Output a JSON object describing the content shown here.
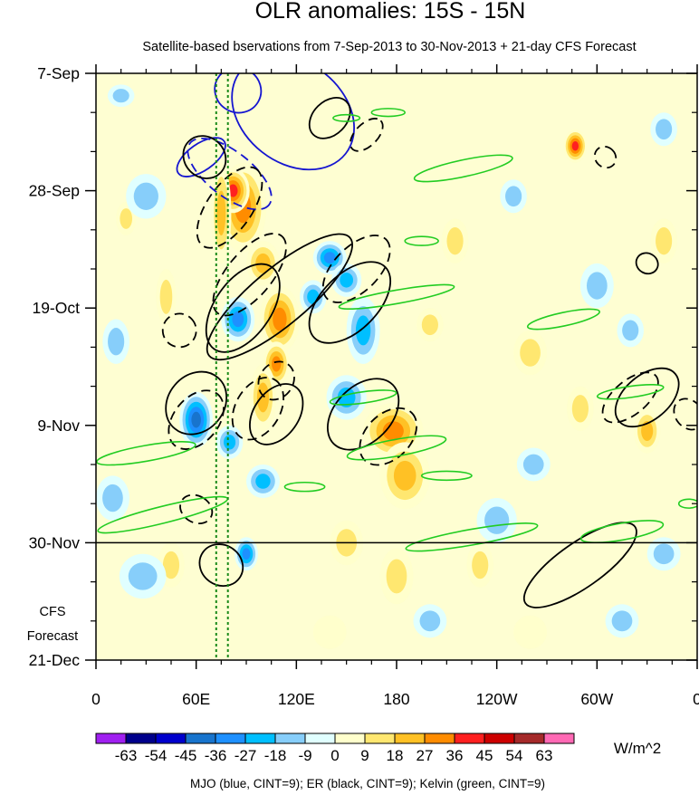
{
  "chart_data": {
    "type": "heatmap",
    "title": "OLR anomalies: 15S - 15N",
    "subtitle": "Satellite-based bservations from 7-Sep-2013 to 30-Nov-2013 + 21-day CFS Forecast",
    "x_ticks": [
      {
        "lon": 0,
        "label": "0"
      },
      {
        "lon": 60,
        "label": "60E"
      },
      {
        "lon": 120,
        "label": "120E"
      },
      {
        "lon": 180,
        "label": "180"
      },
      {
        "lon": 240,
        "label": "120W"
      },
      {
        "lon": 300,
        "label": "60W"
      },
      {
        "lon": 360,
        "label": "0"
      }
    ],
    "xlim": [
      0,
      360
    ],
    "y_ticks": [
      {
        "day": 0,
        "label": "7-Sep"
      },
      {
        "day": 21,
        "label": "28-Sep"
      },
      {
        "day": 42,
        "label": "19-Oct"
      },
      {
        "day": 63,
        "label": "9-Nov"
      },
      {
        "day": 84,
        "label": "30-Nov"
      },
      {
        "day": 105,
        "label": "21-Dec"
      }
    ],
    "ylim_days": [
      0,
      105
    ],
    "forecast_start_day": 84,
    "forecast_label_1": "CFS",
    "forecast_label_2": "Forecast",
    "reference_lon_lines": [
      72,
      79
    ],
    "colorbar": {
      "labels": [
        "-63",
        "-54",
        "-45",
        "-36",
        "-27",
        "-18",
        "-9",
        "0",
        "9",
        "18",
        "27",
        "36",
        "45",
        "54",
        "63"
      ],
      "colors": [
        "#a020f0",
        "#00008b",
        "#0000cd",
        "#1874cd",
        "#1e90ff",
        "#00bfff",
        "#87cefa",
        "#e0ffff",
        "#ffffcc",
        "#ffe770",
        "#ffc125",
        "#ff8c00",
        "#ff2020",
        "#cd0000",
        "#a52a2a",
        "#ff69b4"
      ],
      "units": "W/m^2"
    },
    "contour_legend": "MJO (blue, CINT=9); ER (black, CINT=9); Kelvin (green, CINT=9)",
    "blobs": [
      {
        "lon": 88,
        "day": 24,
        "rx": 14,
        "ry": 8,
        "v": 36
      },
      {
        "lon": 82,
        "day": 21,
        "rx": 10,
        "ry": 4,
        "v": 45
      },
      {
        "lon": 100,
        "day": 34,
        "rx": 10,
        "ry": 4,
        "v": 27
      },
      {
        "lon": 110,
        "day": 44,
        "rx": 12,
        "ry": 6,
        "v": 36
      },
      {
        "lon": 108,
        "day": 52,
        "rx": 8,
        "ry": 4,
        "v": 36
      },
      {
        "lon": 100,
        "day": 58,
        "rx": 8,
        "ry": 6,
        "v": 27
      },
      {
        "lon": 178,
        "day": 64,
        "rx": 18,
        "ry": 5,
        "v": 36
      },
      {
        "lon": 185,
        "day": 72,
        "rx": 15,
        "ry": 6,
        "v": 27
      },
      {
        "lon": 150,
        "day": 84,
        "rx": 10,
        "ry": 4,
        "v": 18
      },
      {
        "lon": 180,
        "day": 90,
        "rx": 10,
        "ry": 5,
        "v": 18
      },
      {
        "lon": 287,
        "day": 13,
        "rx": 7,
        "ry": 3,
        "v": 45
      },
      {
        "lon": 330,
        "day": 64,
        "rx": 8,
        "ry": 4,
        "v": 27
      },
      {
        "lon": 42,
        "day": 40,
        "rx": 6,
        "ry": 5,
        "v": 18
      },
      {
        "lon": 18,
        "day": 26,
        "rx": 6,
        "ry": 3,
        "v": 18
      },
      {
        "lon": 260,
        "day": 50,
        "rx": 10,
        "ry": 4,
        "v": 18
      },
      {
        "lon": 230,
        "day": 88,
        "rx": 8,
        "ry": 4,
        "v": 18
      },
      {
        "lon": 200,
        "day": 45,
        "rx": 8,
        "ry": 3,
        "v": 18
      },
      {
        "lon": 45,
        "day": 88,
        "rx": 8,
        "ry": 4,
        "v": 18
      },
      {
        "lon": 75,
        "day": 25,
        "rx": 6,
        "ry": 9,
        "v": 27
      },
      {
        "lon": 140,
        "day": 33,
        "rx": 10,
        "ry": 3,
        "v": -36
      },
      {
        "lon": 150,
        "day": 37,
        "rx": 9,
        "ry": 3,
        "v": -27
      },
      {
        "lon": 130,
        "day": 40,
        "rx": 8,
        "ry": 3,
        "v": -27
      },
      {
        "lon": 85,
        "day": 44,
        "rx": 10,
        "ry": 4,
        "v": -36
      },
      {
        "lon": 60,
        "day": 62,
        "rx": 10,
        "ry": 5,
        "v": -45
      },
      {
        "lon": 80,
        "day": 66,
        "rx": 8,
        "ry": 3,
        "v": -27
      },
      {
        "lon": 160,
        "day": 46,
        "rx": 10,
        "ry": 6,
        "v": -27
      },
      {
        "lon": 150,
        "day": 58,
        "rx": 12,
        "ry": 4,
        "v": -27
      },
      {
        "lon": 90,
        "day": 86,
        "rx": 7,
        "ry": 3,
        "v": -36
      },
      {
        "lon": 30,
        "day": 22,
        "rx": 12,
        "ry": 4,
        "v": -18
      },
      {
        "lon": 28,
        "day": 90,
        "rx": 14,
        "ry": 4,
        "v": -18
      },
      {
        "lon": 100,
        "day": 73,
        "rx": 10,
        "ry": 3,
        "v": -27
      },
      {
        "lon": 240,
        "day": 80,
        "rx": 12,
        "ry": 4,
        "v": -18
      },
      {
        "lon": 262,
        "day": 70,
        "rx": 10,
        "ry": 3,
        "v": -18
      },
      {
        "lon": 300,
        "day": 38,
        "rx": 10,
        "ry": 4,
        "v": -18
      },
      {
        "lon": 320,
        "day": 46,
        "rx": 8,
        "ry": 3,
        "v": -18
      },
      {
        "lon": 315,
        "day": 98,
        "rx": 10,
        "ry": 3,
        "v": -18
      },
      {
        "lon": 200,
        "day": 98,
        "rx": 10,
        "ry": 3,
        "v": -18
      },
      {
        "lon": 340,
        "day": 86,
        "rx": 10,
        "ry": 3,
        "v": -18
      },
      {
        "lon": 12,
        "day": 48,
        "rx": 8,
        "ry": 4,
        "v": -18
      },
      {
        "lon": 15,
        "day": 4,
        "rx": 8,
        "ry": 2,
        "v": -18
      },
      {
        "lon": 250,
        "day": 22,
        "rx": 8,
        "ry": 3,
        "v": -18
      },
      {
        "lon": 340,
        "day": 10,
        "rx": 8,
        "ry": 3,
        "v": -18
      },
      {
        "lon": 10,
        "day": 76,
        "rx": 10,
        "ry": 4,
        "v": -18
      },
      {
        "lon": 290,
        "day": 60,
        "rx": 8,
        "ry": 4,
        "v": 18
      },
      {
        "lon": 215,
        "day": 30,
        "rx": 8,
        "ry": 4,
        "v": 18
      },
      {
        "lon": 340,
        "day": 30,
        "rx": 8,
        "ry": 4,
        "v": 18
      },
      {
        "lon": 260,
        "day": 100,
        "rx": 10,
        "ry": 3,
        "v": 9
      },
      {
        "lon": 140,
        "day": 100,
        "rx": 10,
        "ry": 3,
        "v": 9
      }
    ],
    "mjo_contours": [
      {
        "lon": 85,
        "day": 3,
        "rlon": 14,
        "rday": 4,
        "angle": 30,
        "dash": false
      },
      {
        "lon": 118,
        "day": 7,
        "rlon": 40,
        "rday": 9,
        "angle": 38,
        "dash": false
      },
      {
        "lon": 63,
        "day": 15,
        "rlon": 8,
        "rday": 5,
        "angle": 55,
        "dash": false
      },
      {
        "lon": 80,
        "day": 18,
        "rlon": 30,
        "rday": 4,
        "angle": 38,
        "dash": true
      }
    ],
    "er_contours": [
      {
        "lon": 140,
        "day": 8,
        "rlon": 14,
        "rday": 3,
        "angle": -45,
        "dash": false
      },
      {
        "lon": 162,
        "day": 11,
        "rlon": 12,
        "rday": 2,
        "angle": -45,
        "dash": true
      },
      {
        "lon": 65,
        "day": 15,
        "rlon": 12,
        "rday": 4,
        "angle": -45,
        "dash": false
      },
      {
        "lon": 80,
        "day": 24,
        "rlon": 28,
        "rday": 4,
        "angle": -55,
        "dash": true
      },
      {
        "lon": 110,
        "day": 40,
        "rlon": 55,
        "rday": 5,
        "angle": -40,
        "dash": false
      },
      {
        "lon": 88,
        "day": 42,
        "rlon": 30,
        "rday": 5,
        "angle": -55,
        "dash": false
      },
      {
        "lon": 92,
        "day": 36,
        "rlon": 30,
        "rday": 4,
        "angle": -50,
        "dash": true
      },
      {
        "lon": 152,
        "day": 41,
        "rlon": 30,
        "rday": 5,
        "angle": -45,
        "dash": false
      },
      {
        "lon": 156,
        "day": 35,
        "rlon": 25,
        "rday": 4,
        "angle": -45,
        "dash": true
      },
      {
        "lon": 60,
        "day": 59,
        "rlon": 20,
        "rday": 5,
        "angle": -50,
        "dash": false
      },
      {
        "lon": 60,
        "day": 62,
        "rlon": 20,
        "rday": 4,
        "angle": -50,
        "dash": true
      },
      {
        "lon": 97,
        "day": 60,
        "rlon": 20,
        "rday": 4,
        "angle": -60,
        "dash": true
      },
      {
        "lon": 108,
        "day": 61,
        "rlon": 20,
        "rday": 4,
        "angle": -55,
        "dash": false
      },
      {
        "lon": 160,
        "day": 61,
        "rlon": 25,
        "rday": 5,
        "angle": -45,
        "dash": false
      },
      {
        "lon": 175,
        "day": 65,
        "rlon": 20,
        "rday": 4,
        "angle": -45,
        "dash": true
      },
      {
        "lon": 60,
        "day": 78,
        "rlon": 8,
        "rday": 3,
        "angle": -60,
        "dash": true
      },
      {
        "lon": 75,
        "day": 88,
        "rlon": 12,
        "rday": 4,
        "angle": -55,
        "dash": false
      },
      {
        "lon": 320,
        "day": 58,
        "rlon": 20,
        "rday": 3,
        "angle": -40,
        "dash": true
      },
      {
        "lon": 330,
        "day": 58,
        "rlon": 22,
        "rday": 4,
        "angle": -40,
        "dash": false
      },
      {
        "lon": 355,
        "day": 61,
        "rlon": 8,
        "rday": 3,
        "angle": -40,
        "dash": true
      },
      {
        "lon": 290,
        "day": 88,
        "rlon": 40,
        "rday": 4,
        "angle": -35,
        "dash": false
      },
      {
        "lon": 330,
        "day": 34,
        "rlon": 6,
        "rday": 2,
        "angle": -60,
        "dash": false
      },
      {
        "lon": 305,
        "day": 15,
        "rlon": 6,
        "rday": 2,
        "angle": -45,
        "dash": true
      },
      {
        "lon": 50,
        "day": 46,
        "rlon": 10,
        "rday": 3,
        "angle": -45,
        "dash": true
      },
      {
        "lon": 108,
        "day": 55,
        "rlon": 12,
        "rday": 3,
        "angle": -55,
        "dash": true
      }
    ],
    "kelvin_contours": [
      {
        "lon": 220,
        "day": 17,
        "rlon": 30,
        "rday": 1.5,
        "angle": -12
      },
      {
        "lon": 150,
        "day": 8,
        "rlon": 8,
        "rday": 0.6,
        "angle": 0
      },
      {
        "lon": 175,
        "day": 7,
        "rlon": 10,
        "rday": 0.7,
        "angle": 0
      },
      {
        "lon": 280,
        "day": 44,
        "rlon": 22,
        "rday": 1.2,
        "angle": -12
      },
      {
        "lon": 180,
        "day": 40,
        "rlon": 35,
        "rday": 1.2,
        "angle": -10
      },
      {
        "lon": 180,
        "day": 67,
        "rlon": 30,
        "rday": 1.5,
        "angle": -10
      },
      {
        "lon": 30,
        "day": 68,
        "rlon": 30,
        "rday": 1.4,
        "angle": -10
      },
      {
        "lon": 40,
        "day": 79,
        "rlon": 40,
        "rday": 1.5,
        "angle": -14
      },
      {
        "lon": 225,
        "day": 83,
        "rlon": 40,
        "rday": 1.4,
        "angle": -10
      },
      {
        "lon": 315,
        "day": 82,
        "rlon": 25,
        "rday": 1.5,
        "angle": -10
      },
      {
        "lon": 320,
        "day": 57,
        "rlon": 20,
        "rday": 1,
        "angle": -8
      },
      {
        "lon": 160,
        "day": 58,
        "rlon": 20,
        "rday": 1,
        "angle": -8
      },
      {
        "lon": 195,
        "day": 30,
        "rlon": 10,
        "rday": 0.8,
        "angle": 0
      },
      {
        "lon": 210,
        "day": 72,
        "rlon": 15,
        "rday": 0.8,
        "angle": 0
      },
      {
        "lon": 125,
        "day": 74,
        "rlon": 12,
        "rday": 0.8,
        "angle": 0
      },
      {
        "lon": 355,
        "day": 77,
        "rlon": 6,
        "rday": 0.8,
        "angle": 0
      }
    ]
  }
}
